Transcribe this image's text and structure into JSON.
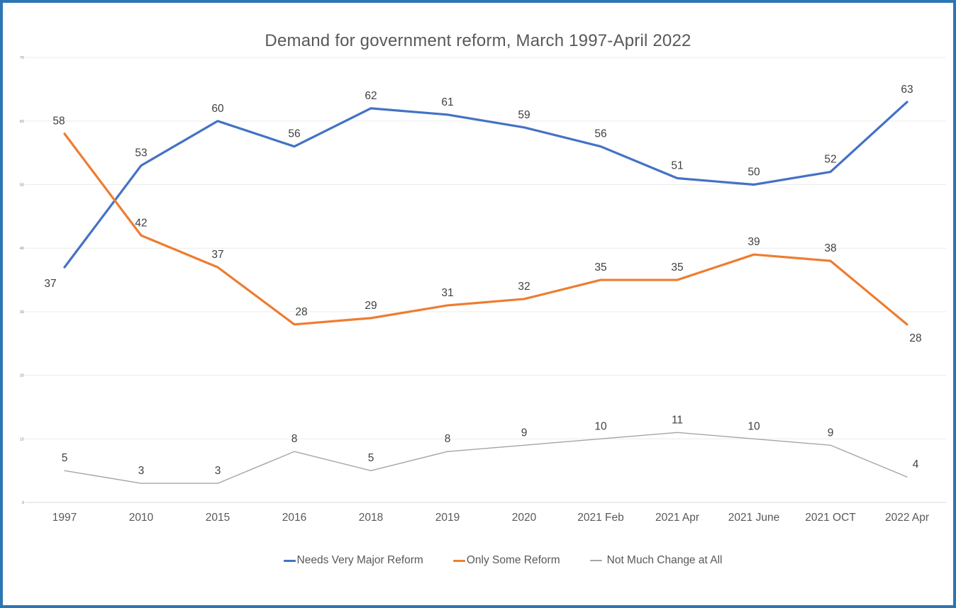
{
  "frame": {
    "border_color": "#2E75B6",
    "background": "#FFFFFF"
  },
  "chart_data": {
    "type": "line",
    "title": "Demand for government reform, March 1997-April 2022",
    "categories": [
      "1997",
      "2010",
      "2015",
      "2016",
      "2018",
      "2019",
      "2020",
      "2021 Feb",
      "2021 Apr",
      "2021 June",
      "2021 OCT",
      "2022 Apr"
    ],
    "series": [
      {
        "name": "Needs Very Major Reform",
        "color": "#4472C4",
        "values": [
          37,
          53,
          60,
          56,
          62,
          61,
          59,
          56,
          51,
          50,
          52,
          63
        ]
      },
      {
        "name": "Only Some Reform",
        "color": "#ED7D31",
        "values": [
          58,
          42,
          37,
          28,
          29,
          31,
          32,
          35,
          35,
          39,
          38,
          28
        ]
      },
      {
        "name": "Not Much Change at All",
        "color": "#A5A5A5",
        "values": [
          5,
          3,
          3,
          8,
          5,
          8,
          9,
          10,
          11,
          10,
          9,
          4
        ]
      }
    ],
    "y_axis": {
      "min": 0,
      "max": 70,
      "ticks": [
        0,
        10,
        20,
        30,
        40,
        50,
        60,
        70
      ]
    },
    "grid": true,
    "data_labels": true,
    "legend_position": "bottom",
    "colors": {
      "title_text": "#595959",
      "axis_text": "#595959",
      "y_tick_text": "#7F7F7F",
      "data_label_text": "#404040",
      "gridline": "#ECECEC",
      "axis_line": "#D9D9D9"
    }
  }
}
